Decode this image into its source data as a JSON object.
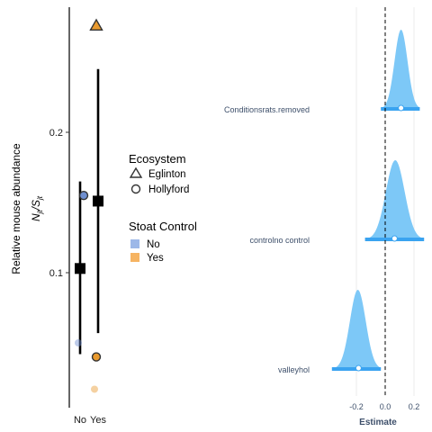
{
  "chart_data": [
    {
      "type": "scatter",
      "ylabel_main": "Relative mouse  abundance",
      "ylabel_ratio": "N_jt / S_jt",
      "y_ticks": [
        0.1,
        0.2
      ],
      "ylim": [
        0.0,
        0.29
      ],
      "categories": [
        "No",
        "Yes"
      ],
      "pointrange": [
        {
          "group": "No",
          "mean": 0.103,
          "low": 0.042,
          "high": 0.165
        },
        {
          "group": "Yes",
          "mean": 0.151,
          "low": 0.057,
          "high": 0.245
        }
      ],
      "points": [
        {
          "group": "No",
          "ecosystem": "Hollyford",
          "value": 0.155,
          "faded": false
        },
        {
          "group": "No",
          "ecosystem": "Hollyford",
          "value": 0.05,
          "faded": true
        },
        {
          "group": "Yes",
          "ecosystem": "Eglinton",
          "value": 0.276,
          "faded": false
        },
        {
          "group": "Yes",
          "ecosystem": "Hollyford",
          "value": 0.04,
          "faded": false
        },
        {
          "group": "Yes",
          "ecosystem": "Hollyford",
          "value": 0.017,
          "faded": true
        }
      ],
      "legend": {
        "ecosystem_title": "Ecosystem",
        "ecosystem_items": [
          {
            "label": "Eglinton",
            "shape": "triangle"
          },
          {
            "label": "Hollyford",
            "shape": "circle"
          }
        ],
        "control_title": "Stoat Control",
        "control_items": [
          {
            "label": "No",
            "color": "#9db8e8"
          },
          {
            "label": "Yes",
            "color": "#f6b462"
          }
        ]
      },
      "colors": {
        "no": "#9db8e8",
        "yes": "#f6b462",
        "no_point": "#6f8fd0",
        "yes_point": "#e99a2e"
      }
    },
    {
      "type": "area",
      "xlabel": "Estimate",
      "x_ticks": [
        -0.2,
        0.0,
        0.2
      ],
      "xlim": [
        -0.38,
        0.28
      ],
      "reference_line": 0.0,
      "terms": [
        {
          "label": "Conditionsrats.removed",
          "mode": 0.11,
          "median": 0.11,
          "lo": -0.03,
          "hi": 0.24,
          "sd": 0.045
        },
        {
          "label": "controlno control",
          "mode": 0.07,
          "median": 0.065,
          "lo": -0.14,
          "hi": 0.27,
          "sd": 0.065
        },
        {
          "label": "valleyhol",
          "mode": -0.19,
          "median": -0.185,
          "lo": -0.37,
          "hi": -0.03,
          "sd": 0.055
        }
      ],
      "colors": {
        "density": "#7dc8f7",
        "interval": "#3aa3f0"
      }
    }
  ]
}
